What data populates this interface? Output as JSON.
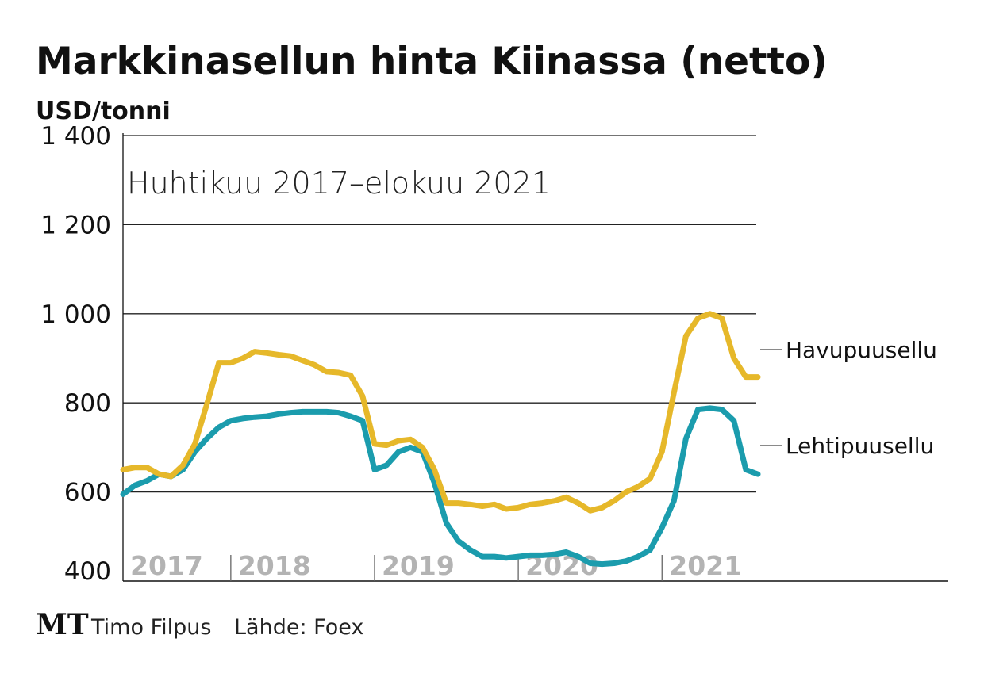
{
  "chart_data": {
    "type": "line",
    "title": "Markkinasellun hinta Kiinassa (netto)",
    "ylabel": "USD/tonni",
    "subtitle": "Huhtikuu 2017–elokuu 2021",
    "ylim": [
      400,
      1400
    ],
    "yticks": [
      400,
      600,
      800,
      1000,
      1200,
      1400
    ],
    "ytick_labels": [
      "400",
      "600",
      "800",
      "1 000",
      "1 200",
      "1 400"
    ],
    "x_start": "2017-04",
    "x_unit": "month",
    "year_labels": [
      "2017",
      "2018",
      "2019",
      "2020",
      "2021"
    ],
    "grid": true,
    "series": [
      {
        "name": "Havupuusellu",
        "color": "#e6b82a",
        "values": [
          650,
          655,
          655,
          640,
          635,
          660,
          708,
          797,
          890,
          890,
          900,
          915,
          912,
          908,
          905,
          895,
          885,
          870,
          868,
          862,
          815,
          708,
          705,
          715,
          718,
          700,
          650,
          575,
          575,
          572,
          568,
          572,
          562,
          565,
          572,
          575,
          580,
          588,
          575,
          558,
          565,
          580,
          600,
          612,
          630,
          690,
          823,
          950,
          990,
          1000,
          990,
          900,
          858,
          858
        ]
      },
      {
        "name": "Lehtipuusellu",
        "color": "#1b9cad",
        "values": [
          595,
          615,
          625,
          640,
          635,
          650,
          690,
          720,
          745,
          760,
          765,
          768,
          770,
          775,
          778,
          780,
          780,
          780,
          778,
          770,
          760,
          650,
          660,
          690,
          700,
          690,
          620,
          530,
          490,
          470,
          455,
          455,
          452,
          455,
          458,
          458,
          460,
          465,
          455,
          440,
          438,
          440,
          445,
          455,
          470,
          520,
          580,
          720,
          785,
          788,
          785,
          760,
          650,
          640
        ]
      }
    ]
  },
  "footer": {
    "logo": "MT",
    "author": "Timo Filpus",
    "source": "Lähde: Foex"
  }
}
